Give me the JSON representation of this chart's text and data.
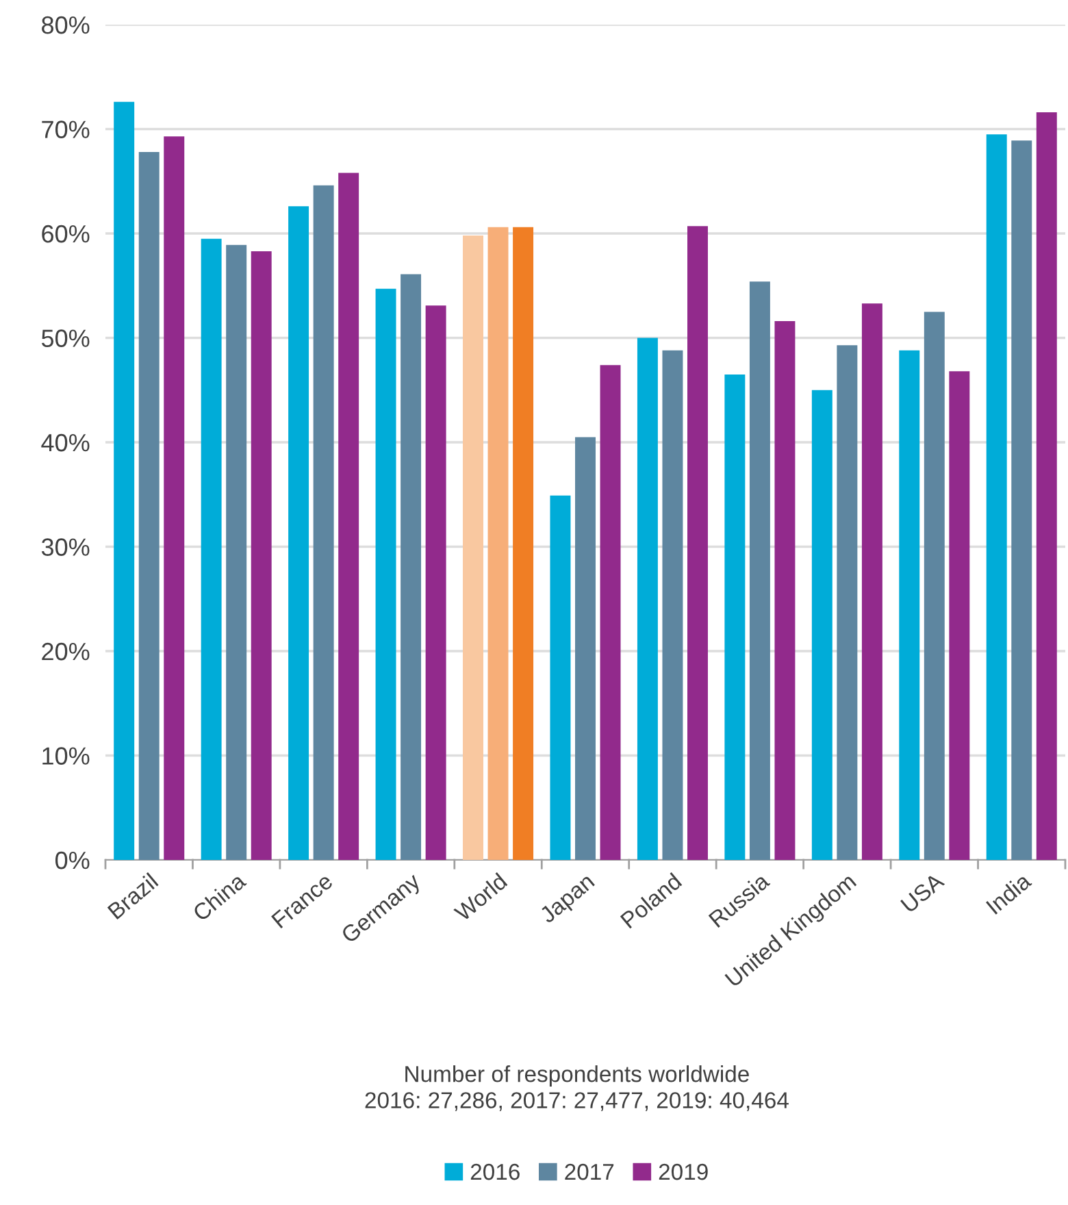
{
  "chart_data": {
    "type": "bar",
    "categories": [
      "Brazil",
      "China",
      "France",
      "Germany",
      "World",
      "Japan",
      "Poland",
      "Russia",
      "United Kingdom",
      "USA",
      "India"
    ],
    "series": [
      {
        "name": "2016",
        "color": "#00acd8",
        "colors": [
          "#00acd8",
          "#00acd8",
          "#00acd8",
          "#00acd8",
          "#f9c8a0",
          "#00acd8",
          "#00acd8",
          "#00acd8",
          "#00acd8",
          "#00acd8",
          "#00acd8"
        ],
        "values": [
          72.6,
          59.5,
          62.6,
          54.7,
          59.8,
          34.9,
          50.0,
          46.5,
          45.0,
          48.8,
          69.5
        ]
      },
      {
        "name": "2017",
        "color": "#5e86a0",
        "colors": [
          "#5e86a0",
          "#5e86a0",
          "#5e86a0",
          "#5e86a0",
          "#f7ae78",
          "#5e86a0",
          "#5e86a0",
          "#5e86a0",
          "#5e86a0",
          "#5e86a0",
          "#5e86a0"
        ],
        "values": [
          67.8,
          58.9,
          64.6,
          56.1,
          60.6,
          40.5,
          48.8,
          55.4,
          49.3,
          52.5,
          68.9
        ]
      },
      {
        "name": "2019",
        "color": "#922a8c",
        "colors": [
          "#922a8c",
          "#922a8c",
          "#922a8c",
          "#922a8c",
          "#f07e24",
          "#922a8c",
          "#922a8c",
          "#922a8c",
          "#922a8c",
          "#922a8c",
          "#922a8c"
        ],
        "values": [
          69.3,
          58.3,
          65.8,
          53.1,
          60.6,
          47.4,
          60.7,
          51.6,
          53.3,
          46.8,
          71.6
        ]
      }
    ],
    "ylim": [
      0,
      80
    ],
    "yticks": [
      {
        "value": 0,
        "label": "0%"
      },
      {
        "value": 10,
        "label": "10%"
      },
      {
        "value": 20,
        "label": "20%"
      },
      {
        "value": 30,
        "label": "30%"
      },
      {
        "value": 40,
        "label": "40%"
      },
      {
        "value": 50,
        "label": "50%"
      },
      {
        "value": 60,
        "label": "60%"
      },
      {
        "value": 70,
        "label": "70%"
      },
      {
        "value": 80,
        "label": "80%"
      }
    ],
    "grid": "y",
    "legend": "bottom",
    "annotations": [
      "Number of respondents worldwide\n2016: 27,286, 2017: 27,477, 2019: 40,464"
    ]
  }
}
